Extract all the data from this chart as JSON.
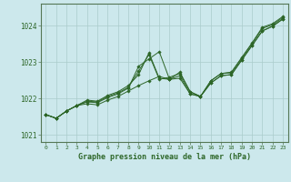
{
  "title": "Graphe pression niveau de la mer (hPa)",
  "background_color": "#cce8ec",
  "grid_color": "#aacccc",
  "line_color": "#2d6628",
  "marker_color": "#2d6628",
  "x_ticks": [
    0,
    1,
    2,
    3,
    4,
    5,
    6,
    7,
    8,
    9,
    10,
    11,
    12,
    13,
    14,
    15,
    16,
    17,
    18,
    19,
    20,
    21,
    22,
    23
  ],
  "xlim": [
    -0.5,
    23.5
  ],
  "ylim": [
    1020.8,
    1024.6
  ],
  "y_ticks": [
    1021,
    1022,
    1023,
    1024
  ],
  "series": [
    [
      1021.55,
      1021.45,
      1021.65,
      1021.8,
      1021.85,
      1021.82,
      1021.95,
      1022.05,
      1022.2,
      1022.35,
      1022.48,
      1022.6,
      1022.52,
      1022.62,
      1022.12,
      1022.05,
      1022.42,
      1022.62,
      1022.65,
      1023.05,
      1023.45,
      1023.85,
      1023.98,
      1024.18
    ],
    [
      1021.55,
      1021.45,
      1021.65,
      1021.8,
      1021.9,
      1021.88,
      1022.02,
      1022.12,
      1022.28,
      1022.88,
      1023.08,
      1023.28,
      1022.52,
      1022.55,
      1022.12,
      1022.05,
      1022.42,
      1022.62,
      1022.65,
      1023.05,
      1023.45,
      1023.85,
      1023.98,
      1024.18
    ],
    [
      1021.55,
      1021.45,
      1021.65,
      1021.8,
      1021.92,
      1021.9,
      1022.05,
      1022.15,
      1022.3,
      1022.75,
      1023.2,
      1022.52,
      1022.58,
      1022.68,
      1022.18,
      1022.05,
      1022.48,
      1022.68,
      1022.7,
      1023.1,
      1023.5,
      1023.92,
      1024.02,
      1024.22
    ],
    [
      1021.55,
      1021.45,
      1021.65,
      1021.8,
      1021.95,
      1021.92,
      1022.08,
      1022.18,
      1022.35,
      1022.65,
      1023.25,
      1022.55,
      1022.52,
      1022.72,
      1022.18,
      1022.05,
      1022.48,
      1022.68,
      1022.72,
      1023.12,
      1023.52,
      1023.95,
      1024.05,
      1024.25
    ]
  ]
}
